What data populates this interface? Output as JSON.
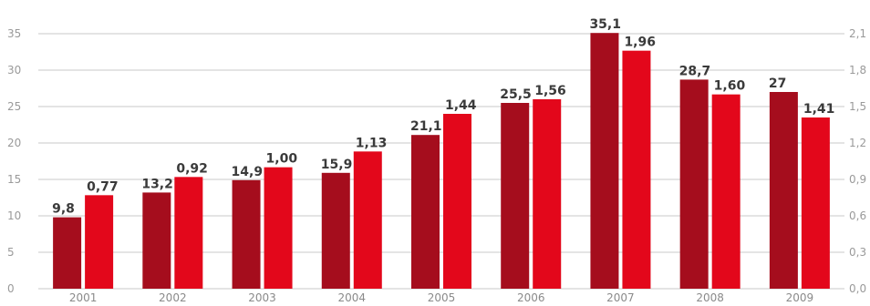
{
  "chart_data": {
    "type": "bar",
    "categories": [
      "2001",
      "2002",
      "2003",
      "2004",
      "2005",
      "2006",
      "2007",
      "2008",
      "2009"
    ],
    "series": [
      {
        "axis": "left",
        "color": "#a50d1d",
        "values": [
          9.8,
          13.2,
          14.9,
          15.9,
          21.1,
          25.5,
          35.1,
          28.7,
          27
        ],
        "labels": [
          "9,8",
          "13,2",
          "14,9",
          "15,9",
          "21,1",
          "25,5",
          "35,1",
          "28,7",
          "27"
        ]
      },
      {
        "axis": "right",
        "color": "#e3071b",
        "values": [
          0.77,
          0.92,
          1.0,
          1.13,
          1.44,
          1.56,
          1.96,
          1.6,
          1.41
        ],
        "labels": [
          "0,77",
          "0,92",
          "1,00",
          "1,13",
          "1,44",
          "1,56",
          "1,96",
          "1,60",
          "1,41"
        ]
      }
    ],
    "y_left": {
      "ylim": [
        0,
        35
      ],
      "ticks": [
        0,
        5,
        10,
        15,
        20,
        25,
        30,
        35
      ],
      "tick_labels": [
        "0",
        "5",
        "10",
        "15",
        "20",
        "25",
        "30",
        "35"
      ]
    },
    "y_right": {
      "ylim": [
        0,
        2.1
      ],
      "ticks": [
        0,
        0.3,
        0.6,
        0.9,
        1.2,
        1.5,
        1.8,
        2.1
      ],
      "tick_labels": [
        "0,0",
        "0,3",
        "0,6",
        "0,9",
        "1,2",
        "1,5",
        "1,8",
        "2,1"
      ]
    },
    "grid": true,
    "legend": "none"
  }
}
